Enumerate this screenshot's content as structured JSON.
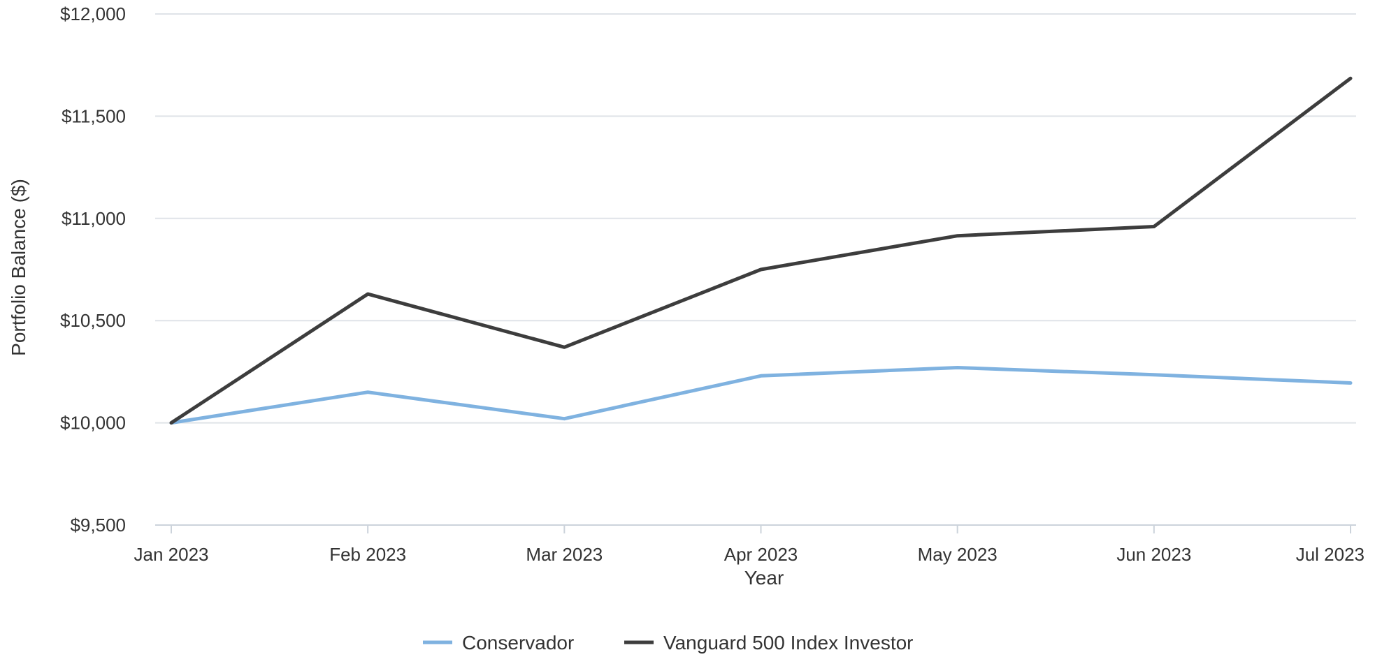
{
  "chart_data": {
    "type": "line",
    "title": "",
    "xlabel": "Year",
    "ylabel": "Portfolio Balance ($)",
    "categories": [
      "Jan 2023",
      "Feb 2023",
      "Mar 2023",
      "Apr 2023",
      "May 2023",
      "Jun 2023",
      "Jul 2023"
    ],
    "y_ticks": [
      9500,
      10000,
      10500,
      11000,
      11500,
      12000
    ],
    "y_tick_labels": [
      "$9,500",
      "$10,000",
      "$10,500",
      "$11,000",
      "$11,500",
      "$12,000"
    ],
    "ylim": [
      9500,
      12000
    ],
    "grid": true,
    "legend_position": "bottom-center",
    "series": [
      {
        "name": "Conservador",
        "color": "#7fb2e0",
        "values": [
          10000,
          10150,
          10020,
          10230,
          10270,
          10235,
          10195
        ]
      },
      {
        "name": "Vanguard 500 Index Investor",
        "color": "#3d3d3d",
        "values": [
          10000,
          10630,
          10370,
          10750,
          10915,
          10960,
          11685
        ]
      }
    ]
  }
}
